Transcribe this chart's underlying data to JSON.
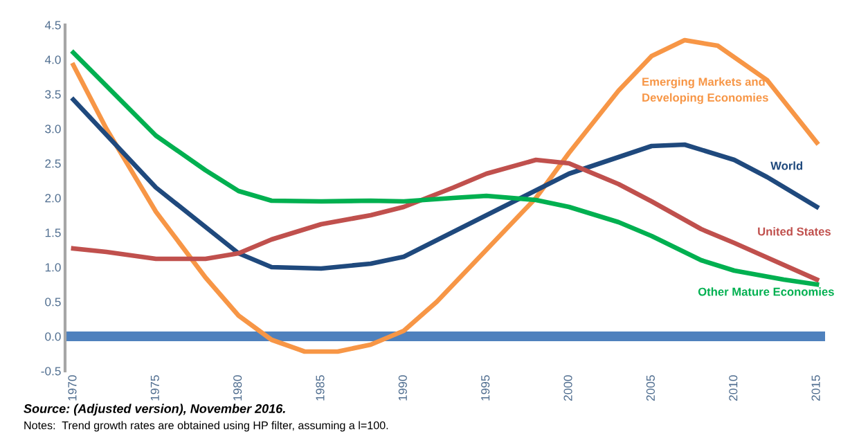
{
  "chart_data": {
    "type": "line",
    "series": [
      {
        "name": "Emerging Markets and\nDeveloping Economies",
        "color": "#f79646",
        "x": [
          1970,
          1972,
          1975,
          1978,
          1980,
          1982,
          1984,
          1986,
          1988,
          1990,
          1992,
          1995,
          1998,
          2000,
          2003,
          2005,
          2007,
          2009,
          2012,
          2015
        ],
        "values": [
          3.92,
          3.0,
          1.8,
          0.85,
          0.3,
          -0.05,
          -0.22,
          -0.22,
          -0.12,
          0.08,
          0.5,
          1.25,
          2.0,
          2.65,
          3.55,
          4.05,
          4.28,
          4.2,
          3.7,
          2.8
        ]
      },
      {
        "name": "World",
        "color": "#1f497d",
        "x": [
          1970,
          1975,
          1980,
          1982,
          1985,
          1988,
          1990,
          1995,
          2000,
          2005,
          2007,
          2010,
          2012,
          2015
        ],
        "values": [
          3.42,
          2.15,
          1.2,
          1.0,
          0.98,
          1.05,
          1.15,
          1.75,
          2.35,
          2.75,
          2.77,
          2.55,
          2.3,
          1.87
        ]
      },
      {
        "name": "United States",
        "color": "#c0504d",
        "x": [
          1970,
          1972,
          1975,
          1978,
          1980,
          1982,
          1985,
          1988,
          1990,
          1993,
          1995,
          1998,
          2000,
          2003,
          2005,
          2008,
          2010,
          2015
        ],
        "values": [
          1.27,
          1.22,
          1.12,
          1.12,
          1.2,
          1.4,
          1.62,
          1.75,
          1.87,
          2.15,
          2.35,
          2.55,
          2.5,
          2.2,
          1.95,
          1.55,
          1.35,
          0.82
        ]
      },
      {
        "name": "Other Mature Economies",
        "color": "#00b050",
        "x": [
          1970,
          1975,
          1978,
          1980,
          1982,
          1985,
          1988,
          1990,
          1993,
          1995,
          1998,
          2000,
          2003,
          2005,
          2008,
          2010,
          2013,
          2015
        ],
        "values": [
          4.1,
          2.9,
          2.4,
          2.1,
          1.96,
          1.95,
          1.96,
          1.95,
          2.0,
          2.03,
          1.97,
          1.87,
          1.65,
          1.45,
          1.1,
          0.95,
          0.82,
          0.75
        ]
      }
    ],
    "xlim": [
      1969.5,
      2015.5
    ],
    "xticks": [
      1970,
      1975,
      1980,
      1985,
      1990,
      1995,
      2000,
      2005,
      2010,
      2015
    ],
    "ylim": [
      -0.5,
      4.5
    ],
    "yticks": [
      {
        "value": -0.5,
        "label": "-0.5"
      },
      {
        "value": 0,
        "label": "0.0"
      },
      {
        "value": 0.5,
        "label": "0.5"
      },
      {
        "value": 1,
        "label": "1.0"
      },
      {
        "value": 1.5,
        "label": "1.5"
      },
      {
        "value": 2,
        "label": "2.0"
      },
      {
        "value": 2.5,
        "label": "2.5"
      },
      {
        "value": 3,
        "label": "3.0"
      },
      {
        "value": 3.5,
        "label": "3.5"
      },
      {
        "value": 4,
        "label": "4.0"
      },
      {
        "value": 4.5,
        "label": "4.5"
      }
    ],
    "ref_lines": [
      {
        "axis": "y",
        "value": 0,
        "color": "#4f81bd"
      }
    ],
    "grid": false,
    "legend": false,
    "marker": "none",
    "line_style": "solid",
    "annotations": [
      "Source: (Adjusted version), November 2016.",
      "Notes:  Trend growth rates are obtained using HP filter, assuming a l=100."
    ]
  }
}
